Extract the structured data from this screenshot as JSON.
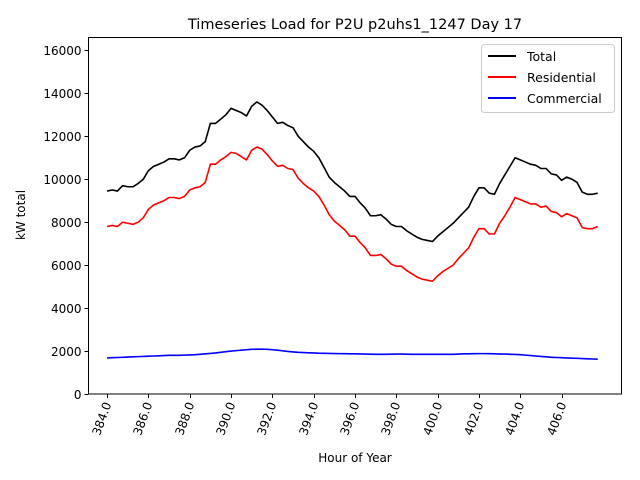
{
  "chart_data": {
    "type": "line",
    "title": "Timeseries Load for P2U p2uhs1_1247  Day 17",
    "xlabel": "Hour of Year",
    "ylabel": "kW total",
    "xlim": [
      383.1,
      408.9
    ],
    "ylim": [
      0,
      16600
    ],
    "grid": false,
    "legend_position": "top-right",
    "x_ticks": [
      384,
      386,
      388,
      390,
      392,
      394,
      396,
      398,
      400,
      402,
      404,
      406
    ],
    "x_tick_labels": [
      "384.0",
      "386.0",
      "388.0",
      "390.0",
      "392.0",
      "394.0",
      "396.0",
      "398.0",
      "400.0",
      "402.0",
      "404.0",
      "406.0"
    ],
    "y_ticks": [
      0,
      2000,
      4000,
      6000,
      8000,
      10000,
      12000,
      14000,
      16000
    ],
    "y_tick_labels": [
      "0",
      "2000",
      "4000",
      "6000",
      "8000",
      "10000",
      "12000",
      "14000",
      "16000"
    ],
    "x_start": 384.0,
    "x_step": 0.25,
    "series": [
      {
        "name": "Total",
        "color": "#000000",
        "values": [
          9450,
          9500,
          9450,
          9700,
          9650,
          9650,
          9800,
          10000,
          10400,
          10600,
          10700,
          10800,
          10950,
          10950,
          10900,
          11000,
          11350,
          11500,
          11550,
          11750,
          12600,
          12600,
          12800,
          13000,
          13300,
          13200,
          13100,
          12950,
          13400,
          13600,
          13450,
          13200,
          12900,
          12600,
          12650,
          12500,
          12400,
          12000,
          11750,
          11500,
          11300,
          11000,
          10550,
          10100,
          9850,
          9650,
          9450,
          9200,
          9200,
          8900,
          8650,
          8300,
          8300,
          8350,
          8150,
          7900,
          7800,
          7800,
          7600,
          7450,
          7300,
          7200,
          7150,
          7100,
          7350,
          7550,
          7750,
          7950,
          8200,
          8450,
          8700,
          9200,
          9600,
          9600,
          9350,
          9300,
          9800,
          10200,
          10600,
          11000,
          10900,
          10800,
          10700,
          10650,
          10500,
          10500,
          10250,
          10200,
          9950,
          10100,
          10000,
          9850,
          9400,
          9300,
          9300,
          9350
        ]
      },
      {
        "name": "Residential",
        "color": "#ff0000",
        "values": [
          7800,
          7850,
          7800,
          8000,
          7950,
          7900,
          8000,
          8200,
          8600,
          8800,
          8900,
          9000,
          9150,
          9150,
          9100,
          9200,
          9500,
          9600,
          9650,
          9850,
          10700,
          10700,
          10900,
          11050,
          11250,
          11200,
          11050,
          10900,
          11350,
          11500,
          11400,
          11150,
          10850,
          10600,
          10650,
          10500,
          10450,
          10050,
          9800,
          9600,
          9450,
          9200,
          8800,
          8350,
          8050,
          7850,
          7650,
          7350,
          7350,
          7050,
          6800,
          6450,
          6450,
          6500,
          6300,
          6050,
          5950,
          5950,
          5750,
          5600,
          5450,
          5350,
          5300,
          5250,
          5500,
          5700,
          5850,
          6000,
          6300,
          6550,
          6800,
          7300,
          7700,
          7700,
          7450,
          7450,
          7950,
          8300,
          8700,
          9150,
          9050,
          8950,
          8850,
          8850,
          8700,
          8750,
          8500,
          8450,
          8250,
          8400,
          8300,
          8200,
          7750,
          7700,
          7700,
          7800
        ]
      },
      {
        "name": "Commercial",
        "color": "#0000ff",
        "values": [
          1680,
          1690,
          1700,
          1710,
          1720,
          1730,
          1740,
          1750,
          1760,
          1770,
          1780,
          1790,
          1800,
          1800,
          1800,
          1810,
          1820,
          1830,
          1850,
          1870,
          1890,
          1910,
          1940,
          1970,
          2000,
          2020,
          2040,
          2060,
          2080,
          2085,
          2090,
          2080,
          2060,
          2040,
          2010,
          1980,
          1960,
          1940,
          1930,
          1920,
          1910,
          1900,
          1895,
          1890,
          1885,
          1880,
          1875,
          1870,
          1870,
          1865,
          1860,
          1855,
          1850,
          1850,
          1850,
          1855,
          1860,
          1860,
          1855,
          1850,
          1850,
          1850,
          1850,
          1850,
          1850,
          1850,
          1850,
          1850,
          1860,
          1870,
          1870,
          1875,
          1880,
          1880,
          1875,
          1870,
          1860,
          1860,
          1850,
          1840,
          1830,
          1810,
          1790,
          1770,
          1750,
          1730,
          1710,
          1700,
          1690,
          1680,
          1670,
          1660,
          1650,
          1640,
          1630,
          1620
        ]
      }
    ]
  }
}
